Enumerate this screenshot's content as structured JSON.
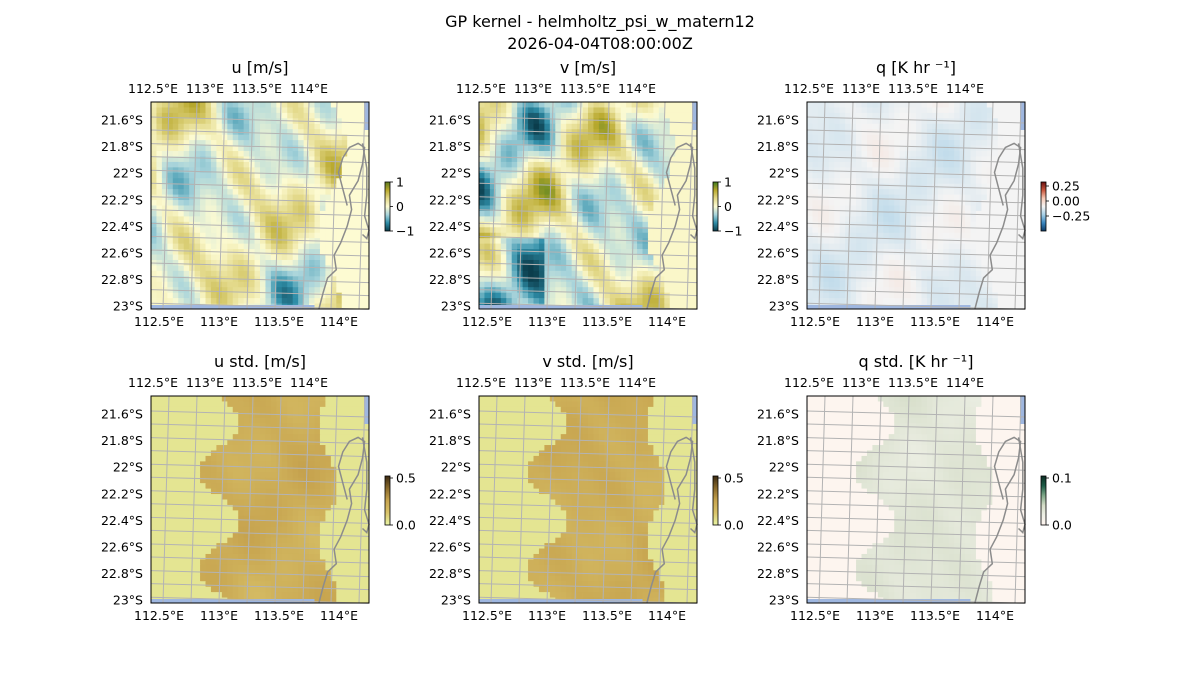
{
  "figure": {
    "title": "GP kernel - helmholtz_psi_w_matern12",
    "subtitle": "2026-04-04T08:00:00Z"
  },
  "chart_data": [
    {
      "type": "heatmap",
      "title": "u [m/s]",
      "xlabel": "",
      "ylabel": "",
      "x_ticks": [
        "112.5°E",
        "113°E",
        "113.5°E",
        "114°E"
      ],
      "y_ticks": [
        "21.6°S",
        "21.8°S",
        "22°S",
        "22.2°S",
        "22.4°S",
        "22.6°S",
        "22.8°S",
        "23°S"
      ],
      "xlim": [
        112.5,
        114.25
      ],
      "ylim": [
        -23.0,
        -21.45
      ],
      "colorbar": {
        "ticks": [
          "1",
          "0",
          "−1"
        ],
        "range": [
          -1,
          1
        ]
      },
      "colormap": [
        "#0b3d4c",
        "#2f8ea8",
        "#a8d4db",
        "#fdfbd2",
        "#e3d98a",
        "#b9a92e",
        "#5c7a1f"
      ]
    },
    {
      "type": "heatmap",
      "title": "v [m/s]",
      "xlabel": "",
      "ylabel": "",
      "x_ticks": [
        "112.5°E",
        "113°E",
        "113.5°E",
        "114°E"
      ],
      "y_ticks": [
        "21.6°S",
        "21.8°S",
        "22°S",
        "22.2°S",
        "22.4°S",
        "22.6°S",
        "22.8°S",
        "23°S"
      ],
      "xlim": [
        112.5,
        114.25
      ],
      "ylim": [
        -23.0,
        -21.45
      ],
      "colorbar": {
        "ticks": [
          "1",
          "0",
          "−1"
        ],
        "range": [
          -1,
          1
        ]
      },
      "colormap": [
        "#0b3d4c",
        "#2f8ea8",
        "#a8d4db",
        "#fdfbd2",
        "#e3d98a",
        "#b9a92e",
        "#3f7a1c"
      ]
    },
    {
      "type": "heatmap",
      "title": "q [K hr ⁻¹]",
      "xlabel": "",
      "ylabel": "",
      "x_ticks": [
        "112.5°E",
        "113°E",
        "113.5°E",
        "114°E"
      ],
      "y_ticks": [
        "21.6°S",
        "21.8°S",
        "22°S",
        "22.2°S",
        "22.4°S",
        "22.6°S",
        "22.8°S",
        "23°S"
      ],
      "xlim": [
        112.5,
        114.25
      ],
      "ylim": [
        -23.0,
        -21.45
      ],
      "colorbar": {
        "ticks": [
          "0.25",
          "0.00",
          "−0.25"
        ],
        "range": [
          -0.3,
          0.3
        ]
      },
      "colormap": [
        "#0d3b66",
        "#3a87c0",
        "#a6cfe6",
        "#f4f4f4",
        "#f7c9b5",
        "#c8563d",
        "#6b1010"
      ]
    },
    {
      "type": "heatmap",
      "title": "u std. [m/s]",
      "xlabel": "",
      "ylabel": "",
      "x_ticks": [
        "112.5°E",
        "113°E",
        "113.5°E",
        "114°E"
      ],
      "y_ticks": [
        "21.6°S",
        "21.8°S",
        "22°S",
        "22.2°S",
        "22.4°S",
        "22.6°S",
        "22.8°S",
        "23°S"
      ],
      "xlim": [
        112.5,
        114.25
      ],
      "ylim": [
        -23.0,
        -21.45
      ],
      "colorbar": {
        "ticks": [
          "0.5",
          "0.0"
        ],
        "range": [
          0,
          0.6
        ]
      },
      "colormap": [
        "#e9f5a5",
        "#d9c36a",
        "#c7a44f",
        "#8a6a2c",
        "#3b2a12"
      ]
    },
    {
      "type": "heatmap",
      "title": "v std. [m/s]",
      "xlabel": "",
      "ylabel": "",
      "x_ticks": [
        "112.5°E",
        "113°E",
        "113.5°E",
        "114°E"
      ],
      "y_ticks": [
        "21.6°S",
        "21.8°S",
        "22°S",
        "22.2°S",
        "22.4°S",
        "22.6°S",
        "22.8°S",
        "23°S"
      ],
      "xlim": [
        112.5,
        114.25
      ],
      "ylim": [
        -23.0,
        -21.45
      ],
      "colorbar": {
        "ticks": [
          "0.5",
          "0.0"
        ],
        "range": [
          0,
          0.6
        ]
      },
      "colormap": [
        "#e9f5a5",
        "#d9c36a",
        "#c7a44f",
        "#8a6a2c",
        "#3b2a12"
      ]
    },
    {
      "type": "heatmap",
      "title": "q std. [K hr ⁻¹]",
      "xlabel": "",
      "ylabel": "",
      "x_ticks": [
        "112.5°E",
        "113°E",
        "113.5°E",
        "114°E"
      ],
      "y_ticks": [
        "21.6°S",
        "21.8°S",
        "22°S",
        "22.2°S",
        "22.4°S",
        "22.6°S",
        "22.8°S",
        "23°S"
      ],
      "xlim": [
        112.5,
        114.25
      ],
      "ylim": [
        -23.0,
        -21.45
      ],
      "colorbar": {
        "ticks": [
          "0.1",
          "0.0"
        ],
        "range": [
          0,
          0.12
        ]
      },
      "colormap": [
        "#fff5f0",
        "#eef0e6",
        "#d5ddc8",
        "#7fa889",
        "#1d5c47",
        "#0b2e24"
      ]
    }
  ],
  "colors": {
    "ocean_edge": "#9fb7e0",
    "coastline": "#8c8c8c",
    "gridline": "#b3b3b3"
  }
}
